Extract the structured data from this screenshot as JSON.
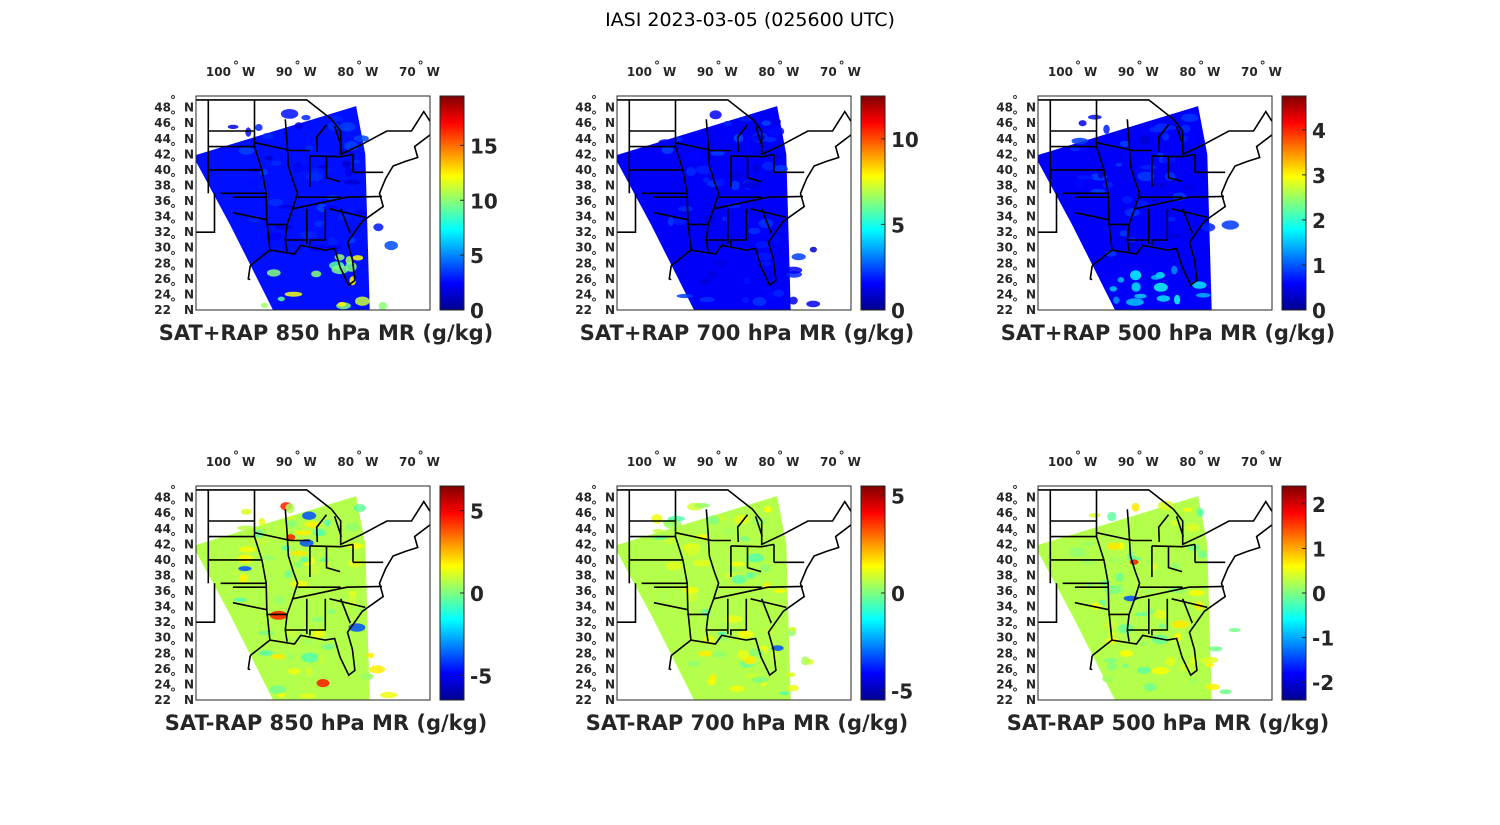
{
  "figure": {
    "title": "IASI 2023-03-05 (025600 UTC)",
    "lon_ticks": [
      "100",
      "90",
      "80",
      "70"
    ],
    "lon_hemisphere": "W",
    "lat_ticks": [
      "48",
      "46",
      "44",
      "42",
      "40",
      "38",
      "36",
      "34",
      "32",
      "30",
      "28",
      "26",
      "24",
      "22"
    ],
    "lat_hemisphere": "N",
    "degree_symbol": "°"
  },
  "chart_data": [
    {
      "type": "heatmap",
      "title": "SAT+RAP 850 hPa MR (g/kg)",
      "colorbar_ticks": [
        "0",
        "5",
        "10",
        "15"
      ],
      "clim": [
        0,
        19.5
      ],
      "colormap": "jet"
    },
    {
      "type": "heatmap",
      "title": "SAT+RAP 700 hPa MR (g/kg)",
      "colorbar_ticks": [
        "0",
        "5",
        "10"
      ],
      "clim": [
        0,
        12.5
      ],
      "colormap": "jet"
    },
    {
      "type": "heatmap",
      "title": "SAT+RAP 500 hPa MR (g/kg)",
      "colorbar_ticks": [
        "0",
        "1",
        "2",
        "3",
        "4"
      ],
      "clim": [
        0,
        4.75
      ],
      "colormap": "jet"
    },
    {
      "type": "heatmap",
      "title": "SAT-RAP 850 hPa MR (g/kg)",
      "colorbar_ticks": [
        "-5",
        "0",
        "5"
      ],
      "clim": [
        -6.5,
        6.5
      ],
      "colormap": "jet"
    },
    {
      "type": "heatmap",
      "title": "SAT-RAP 700 hPa MR (g/kg)",
      "colorbar_ticks": [
        "-5",
        "0",
        "5"
      ],
      "clim": [
        -5.5,
        5.5
      ],
      "colormap": "jet"
    },
    {
      "type": "heatmap",
      "title": "SAT-RAP 500 hPa MR (g/kg)",
      "colorbar_ticks": [
        "-2",
        "-1",
        "0",
        "1",
        "2"
      ],
      "clim": [
        -2.4,
        2.4
      ],
      "colormap": "jet"
    }
  ]
}
